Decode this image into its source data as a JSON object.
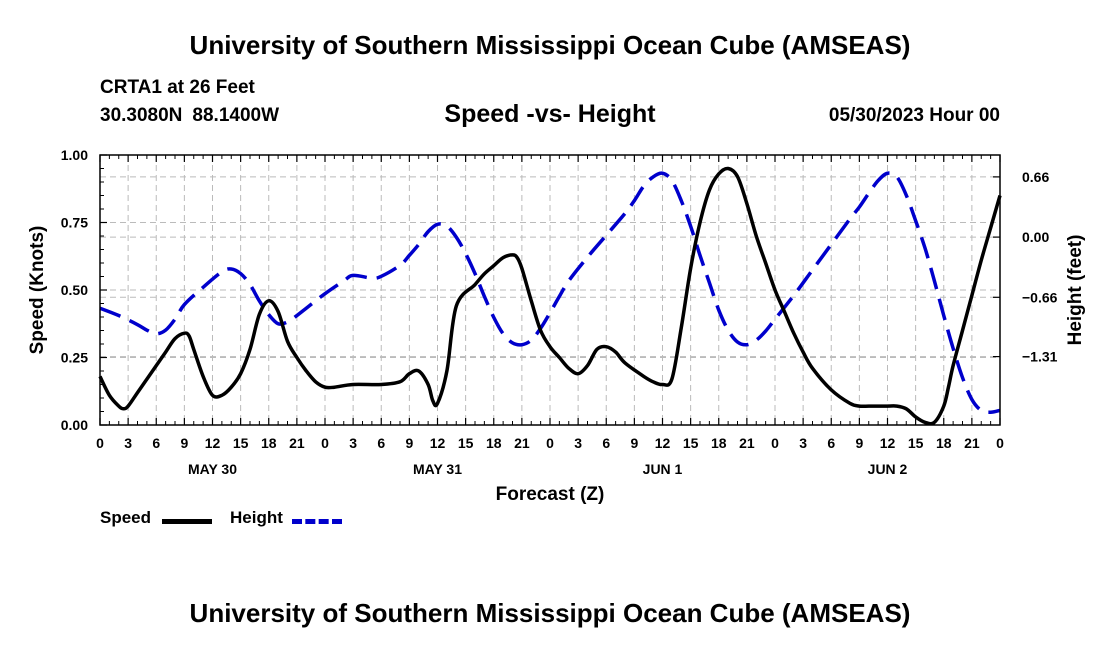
{
  "header": {
    "title": "University of Southern Mississippi Ocean Cube (AMSEAS)",
    "station": "CRTA1 at 26 Feet",
    "lat": "30.3080N",
    "lon": "88.1400W",
    "plot_title": "Speed -vs- Height",
    "forecast_date": "05/30/2023 Hour 00"
  },
  "footer": {
    "title": "University of Southern Mississippi Ocean Cube (AMSEAS)"
  },
  "legend": {
    "speed_label": "Speed",
    "height_label": "Height",
    "speed_color": "#000000",
    "height_color": "#0000cc"
  },
  "chart_data": {
    "type": "line",
    "title": "Speed -vs- Height",
    "xlabel": "Forecast (Z)",
    "ylabel": "Speed (Knots)",
    "y2label": "Height (feet)",
    "x_range_hours": [
      0,
      96
    ],
    "xticks": [
      {
        "h": 0,
        "label": "0"
      },
      {
        "h": 3,
        "label": "3"
      },
      {
        "h": 6,
        "label": "6"
      },
      {
        "h": 9,
        "label": "9"
      },
      {
        "h": 12,
        "label": "12"
      },
      {
        "h": 15,
        "label": "15"
      },
      {
        "h": 18,
        "label": "18"
      },
      {
        "h": 21,
        "label": "21"
      },
      {
        "h": 24,
        "label": "0"
      },
      {
        "h": 27,
        "label": "3"
      },
      {
        "h": 30,
        "label": "6"
      },
      {
        "h": 33,
        "label": "9"
      },
      {
        "h": 36,
        "label": "12"
      },
      {
        "h": 39,
        "label": "15"
      },
      {
        "h": 42,
        "label": "18"
      },
      {
        "h": 45,
        "label": "21"
      },
      {
        "h": 48,
        "label": "0"
      },
      {
        "h": 51,
        "label": "3"
      },
      {
        "h": 54,
        "label": "6"
      },
      {
        "h": 57,
        "label": "9"
      },
      {
        "h": 60,
        "label": "12"
      },
      {
        "h": 63,
        "label": "15"
      },
      {
        "h": 66,
        "label": "18"
      },
      {
        "h": 69,
        "label": "21"
      },
      {
        "h": 72,
        "label": "0"
      },
      {
        "h": 75,
        "label": "3"
      },
      {
        "h": 78,
        "label": "6"
      },
      {
        "h": 81,
        "label": "9"
      },
      {
        "h": 84,
        "label": "12"
      },
      {
        "h": 87,
        "label": "15"
      },
      {
        "h": 90,
        "label": "18"
      },
      {
        "h": 93,
        "label": "21"
      },
      {
        "h": 96,
        "label": "0"
      }
    ],
    "day_labels": [
      {
        "h": 12,
        "label": "MAY 30"
      },
      {
        "h": 36,
        "label": "MAY 31"
      },
      {
        "h": 60,
        "label": "JUN 1"
      },
      {
        "h": 84,
        "label": "JUN 2"
      }
    ],
    "ylim": [
      0,
      1.0
    ],
    "yticks": [
      {
        "v": 0.0,
        "label": "0.00"
      },
      {
        "v": 0.25,
        "label": "0.25"
      },
      {
        "v": 0.5,
        "label": "0.50"
      },
      {
        "v": 0.75,
        "label": "0.75"
      },
      {
        "v": 1.0,
        "label": "1.00"
      }
    ],
    "y2lim": [
      -2.06,
      0.9
    ],
    "y2ticks": [
      {
        "v": 0.66,
        "label": "0.66"
      },
      {
        "v": 0.0,
        "label": "0.00"
      },
      {
        "v": -0.66,
        "label": "−0.66"
      },
      {
        "v": -1.31,
        "label": "−1.31"
      }
    ],
    "series": [
      {
        "name": "Speed",
        "axis": "left",
        "x": [
          0,
          1,
          2,
          2.5,
          3,
          4,
          5,
          6,
          7,
          8,
          9,
          9.5,
          10,
          11,
          12,
          13,
          14,
          15,
          16,
          17,
          18,
          19,
          20,
          21,
          22,
          23,
          24,
          25,
          27,
          30,
          32,
          33,
          34,
          35,
          35.5,
          36,
          37,
          38,
          40,
          41,
          42,
          43,
          44,
          44.5,
          45,
          46,
          47,
          48,
          49,
          50,
          51,
          52,
          53,
          54,
          55,
          56,
          58,
          59,
          60,
          61,
          62,
          63,
          64,
          65,
          66,
          67,
          68,
          69,
          70,
          71,
          72,
          73,
          74,
          75,
          76,
          78,
          80,
          81,
          82,
          83,
          84,
          85,
          86,
          87,
          88,
          89,
          90,
          90.5,
          91,
          92,
          93,
          94,
          95,
          96
        ],
        "values": [
          0.18,
          0.11,
          0.07,
          0.06,
          0.07,
          0.12,
          0.17,
          0.22,
          0.27,
          0.32,
          0.34,
          0.33,
          0.28,
          0.18,
          0.11,
          0.11,
          0.14,
          0.19,
          0.28,
          0.41,
          0.46,
          0.42,
          0.31,
          0.25,
          0.2,
          0.16,
          0.14,
          0.14,
          0.15,
          0.15,
          0.16,
          0.19,
          0.2,
          0.15,
          0.09,
          0.08,
          0.2,
          0.44,
          0.52,
          0.56,
          0.59,
          0.62,
          0.63,
          0.62,
          0.58,
          0.46,
          0.35,
          0.29,
          0.25,
          0.21,
          0.19,
          0.22,
          0.28,
          0.29,
          0.27,
          0.23,
          0.18,
          0.16,
          0.15,
          0.17,
          0.36,
          0.58,
          0.75,
          0.87,
          0.93,
          0.95,
          0.92,
          0.82,
          0.7,
          0.6,
          0.5,
          0.42,
          0.34,
          0.27,
          0.21,
          0.13,
          0.08,
          0.07,
          0.07,
          0.07,
          0.07,
          0.07,
          0.06,
          0.03,
          0.01,
          0.01,
          0.07,
          0.14,
          0.22,
          0.35,
          0.48,
          0.61,
          0.73,
          0.85
        ],
        "color": "#000000",
        "dash": "solid"
      },
      {
        "name": "Height",
        "axis": "right",
        "x": [
          0,
          2,
          4,
          5,
          6,
          7,
          8,
          9,
          11,
          13,
          14,
          15,
          16,
          17,
          18,
          19,
          20,
          21,
          22,
          24,
          26,
          27,
          29,
          30,
          32,
          33,
          34,
          35,
          36,
          37,
          38,
          39,
          40,
          41,
          42,
          43,
          44,
          45,
          46,
          47,
          48,
          49,
          50,
          52,
          54,
          56,
          57,
          58,
          59,
          60,
          61,
          62,
          63,
          64,
          65,
          66,
          67,
          68,
          69,
          70,
          71,
          72,
          74,
          76,
          78,
          80,
          81,
          82,
          83,
          84,
          85,
          86,
          87,
          88,
          89,
          90,
          91,
          92,
          93,
          94,
          95,
          96
        ],
        "values": [
          -0.78,
          -0.86,
          -0.96,
          -1.02,
          -1.06,
          -1.02,
          -0.9,
          -0.74,
          -0.55,
          -0.38,
          -0.35,
          -0.4,
          -0.52,
          -0.7,
          -0.85,
          -0.95,
          -0.93,
          -0.86,
          -0.78,
          -0.62,
          -0.48,
          -0.42,
          -0.45,
          -0.43,
          -0.31,
          -0.2,
          -0.08,
          0.06,
          0.14,
          0.12,
          0.0,
          -0.18,
          -0.4,
          -0.65,
          -0.88,
          -1.06,
          -1.16,
          -1.18,
          -1.13,
          -1.0,
          -0.83,
          -0.65,
          -0.48,
          -0.22,
          0.02,
          0.26,
          0.4,
          0.56,
          0.66,
          0.7,
          0.62,
          0.4,
          0.12,
          -0.2,
          -0.5,
          -0.8,
          -1.02,
          -1.15,
          -1.18,
          -1.13,
          -1.03,
          -0.9,
          -0.64,
          -0.36,
          -0.08,
          0.2,
          0.33,
          0.48,
          0.62,
          0.7,
          0.66,
          0.46,
          0.18,
          -0.12,
          -0.48,
          -0.86,
          -1.22,
          -1.54,
          -1.78,
          -1.9,
          -1.92,
          -1.9
        ],
        "color": "#0000cc",
        "dash": "dashed"
      }
    ]
  }
}
